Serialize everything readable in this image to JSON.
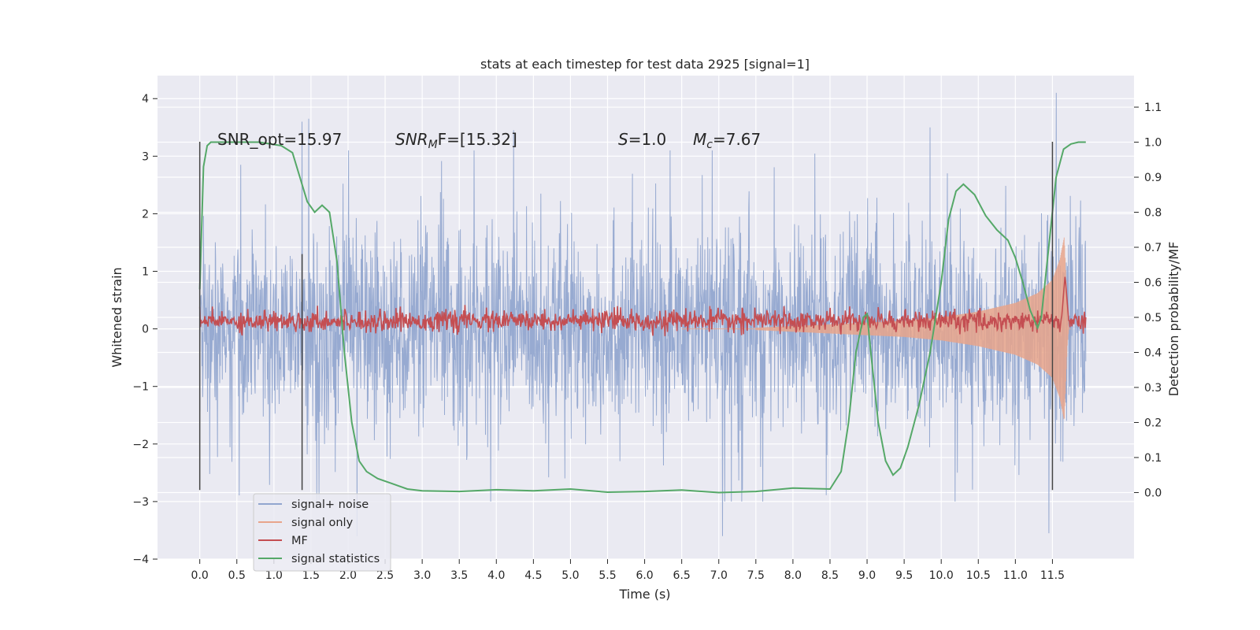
{
  "chart_data": {
    "type": "line",
    "title": "stats at each timestep for test data 2925 [signal=1]",
    "xlabel": "Time (s)",
    "ylabel": "Whitened strain",
    "y2label": "Detection probability/MF",
    "xlim": [
      -0.57,
      12.6
    ],
    "ylim": [
      -4.0,
      4.4
    ],
    "y2lim": [
      -0.19,
      1.19
    ],
    "xticks": [
      0.0,
      0.5,
      1.0,
      1.5,
      2.0,
      2.5,
      3.0,
      3.5,
      4.0,
      4.5,
      5.0,
      5.5,
      6.0,
      6.5,
      7.0,
      7.5,
      8.0,
      8.5,
      9.0,
      9.5,
      10.0,
      10.5,
      11.0,
      11.5
    ],
    "xtick_labels": [
      "0.0",
      "0.5",
      "1.0",
      "1.5",
      "2.0",
      "2.5",
      "3.0",
      "3.5",
      "4.0",
      "4.5",
      "5.0",
      "5.5",
      "6.0",
      "6.5",
      "7.0",
      "7.5",
      "8.0",
      "8.5",
      "9.0",
      "9.5",
      "10.0",
      "10.5",
      "11.0",
      "11.5"
    ],
    "yticks": [
      4,
      3,
      2,
      1,
      0,
      -1,
      -2,
      -3,
      -4
    ],
    "ytick_labels": [
      "4",
      "3",
      "2",
      "1",
      "0",
      "−1",
      "−2",
      "−3",
      "−4"
    ],
    "y2ticks": [
      1.1,
      1.0,
      0.9,
      0.8,
      0.7,
      0.6,
      0.5,
      0.4,
      0.3,
      0.2,
      0.1,
      0.0
    ],
    "y2tick_labels": [
      "1.1",
      "1.0",
      "0.9",
      "0.8",
      "0.7",
      "0.6",
      "0.5",
      "0.4",
      "0.3",
      "0.2",
      "0.1",
      "0.0"
    ],
    "grid": true,
    "legend_position": "lower-left",
    "annotations": {
      "snr_opt": "SNR_opt=15.97",
      "snr_mf_sym": "SNR",
      "snr_mf_sub": "M",
      "snr_mf_rest": "F=[15.32]",
      "s_sym": "S",
      "s_rest": "=1.0",
      "mc_sym": "M",
      "mc_sub": "c",
      "mc_rest": "=7.67"
    },
    "series": [
      {
        "name": "signal+ noise",
        "color": "#92a6cf",
        "t_start": 0.0,
        "t_end": 11.95,
        "envelope_typical": 1.4,
        "notable_peaks": [
          {
            "x": 1.38,
            "y": 3.6
          },
          {
            "x": 1.47,
            "y": 3.65
          },
          {
            "x": 4.23,
            "y": 3.45
          },
          {
            "x": 9.85,
            "y": 3.5
          },
          {
            "x": 11.55,
            "y": 4.1
          },
          {
            "x": 7.05,
            "y": -3.6
          },
          {
            "x": 11.45,
            "y": -3.55
          },
          {
            "x": 2.12,
            "y": -3.6
          }
        ]
      },
      {
        "name": "signal only",
        "color": "#e8a58b",
        "envelope": [
          {
            "x": 7.5,
            "a": 0.02
          },
          {
            "x": 8.5,
            "a": 0.08
          },
          {
            "x": 9.5,
            "a": 0.14
          },
          {
            "x": 10.0,
            "a": 0.2
          },
          {
            "x": 10.5,
            "a": 0.3
          },
          {
            "x": 11.0,
            "a": 0.45
          },
          {
            "x": 11.3,
            "a": 0.62
          },
          {
            "x": 11.5,
            "a": 0.85
          },
          {
            "x": 11.6,
            "a": 1.2
          },
          {
            "x": 11.66,
            "a": 1.6
          },
          {
            "x": 11.7,
            "a": 0.3
          },
          {
            "x": 11.72,
            "a": 0.0
          }
        ]
      },
      {
        "name": "MF",
        "color": "#c44e52",
        "axis": "right",
        "base": 0.49,
        "noise_amp": 0.015,
        "peak": {
          "x": 11.67,
          "y": 0.62
        }
      },
      {
        "name": "signal statistics",
        "color": "#55a868",
        "axis": "right",
        "x": [
          0.0,
          0.05,
          0.1,
          0.15,
          0.2,
          0.3,
          0.5,
          0.8,
          1.1,
          1.25,
          1.35,
          1.45,
          1.55,
          1.65,
          1.75,
          1.85,
          1.95,
          2.05,
          2.15,
          2.25,
          2.4,
          2.6,
          2.8,
          3.0,
          3.5,
          4.0,
          4.5,
          5.0,
          5.5,
          6.0,
          6.5,
          7.0,
          7.5,
          8.0,
          8.5,
          8.65,
          8.75,
          8.85,
          8.95,
          9.0,
          9.05,
          9.15,
          9.25,
          9.35,
          9.45,
          9.55,
          9.7,
          9.85,
          10.0,
          10.1,
          10.2,
          10.3,
          10.45,
          10.6,
          10.75,
          10.9,
          11.0,
          11.1,
          11.2,
          11.3,
          11.35,
          11.45,
          11.55,
          11.65,
          11.75,
          11.85,
          11.95
        ],
        "y": [
          0.58,
          0.93,
          0.99,
          1.0,
          1.0,
          1.0,
          1.0,
          1.0,
          0.99,
          0.97,
          0.9,
          0.83,
          0.8,
          0.82,
          0.8,
          0.66,
          0.4,
          0.2,
          0.09,
          0.06,
          0.04,
          0.025,
          0.01,
          0.005,
          0.003,
          0.008,
          0.005,
          0.01,
          0.001,
          0.003,
          0.007,
          0.0,
          0.003,
          0.013,
          0.01,
          0.06,
          0.2,
          0.4,
          0.5,
          0.51,
          0.4,
          0.2,
          0.09,
          0.05,
          0.07,
          0.13,
          0.25,
          0.4,
          0.6,
          0.78,
          0.86,
          0.88,
          0.85,
          0.79,
          0.75,
          0.72,
          0.67,
          0.6,
          0.52,
          0.47,
          0.5,
          0.7,
          0.9,
          0.98,
          0.995,
          1.0,
          1.0
        ]
      }
    ],
    "vertical_lines": [
      {
        "x": 0.0,
        "y_top": 3.25,
        "y_bottom": -2.8
      },
      {
        "x": 1.38,
        "y_top": 1.3,
        "y_bottom": -2.8
      },
      {
        "x": 11.5,
        "y_top": 3.25,
        "y_bottom": -2.8
      }
    ]
  }
}
